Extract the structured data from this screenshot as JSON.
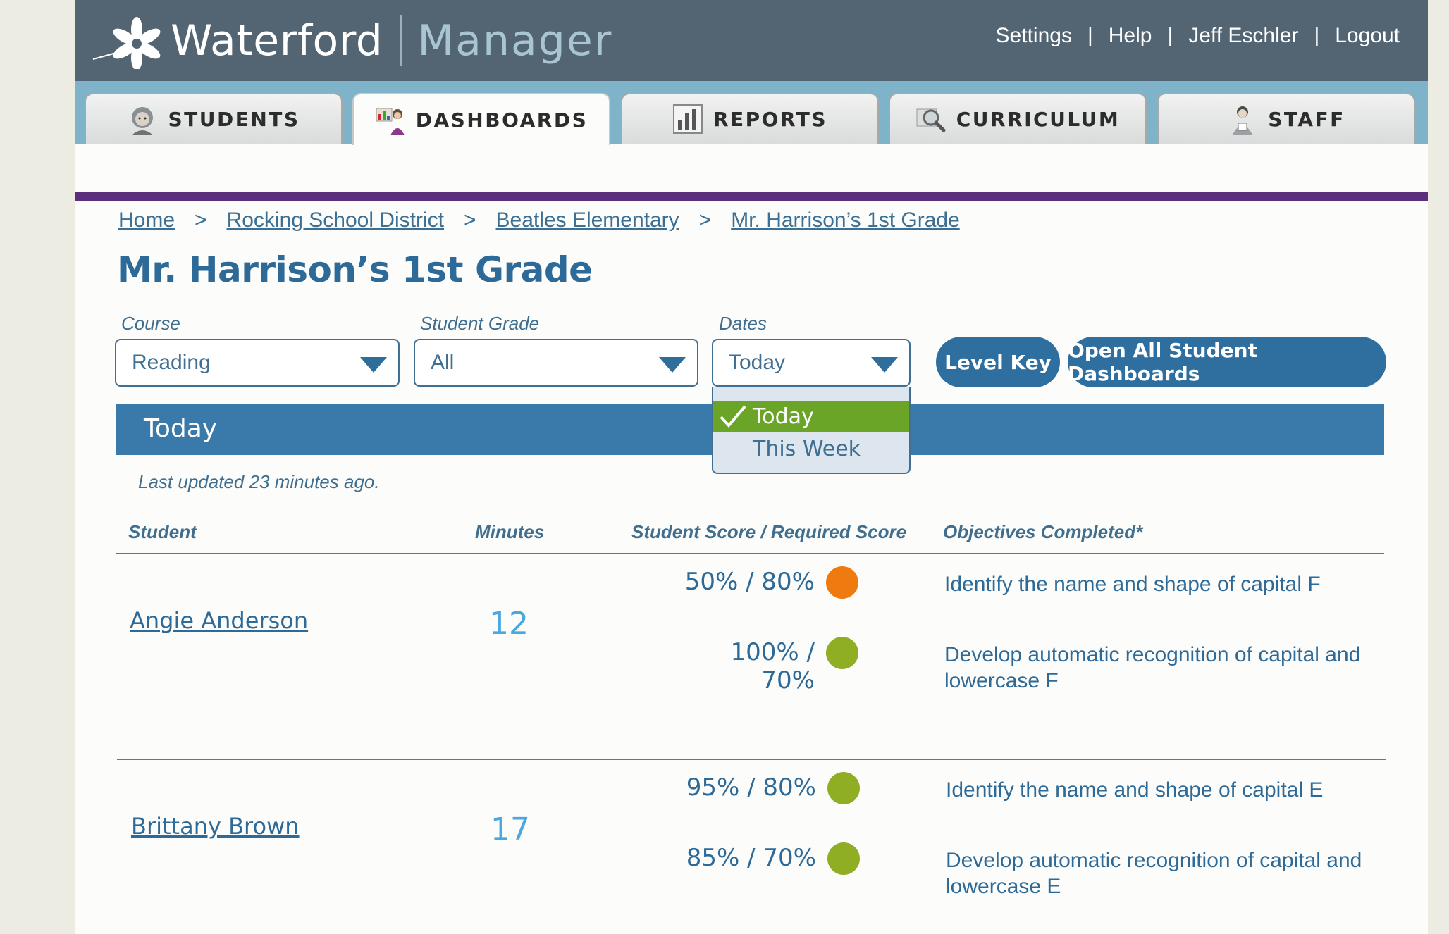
{
  "header": {
    "logo_text": "Waterford",
    "product": "Manager",
    "nav": [
      "Settings",
      "Help",
      "Jeff Eschler",
      "Logout"
    ]
  },
  "tabs": [
    {
      "label": "STUDENTS",
      "icon": "student-icon"
    },
    {
      "label": "DASHBOARDS",
      "icon": "dashboard-icon"
    },
    {
      "label": "REPORTS",
      "icon": "bar-chart-icon"
    },
    {
      "label": "CURRICULUM",
      "icon": "magnifier-icon"
    },
    {
      "label": "STAFF",
      "icon": "teacher-icon"
    }
  ],
  "active_tab": "DASHBOARDS",
  "breadcrumb": [
    "Home",
    "Rocking School District",
    "Beatles Elementary",
    "Mr. Harrison’s 1st Grade"
  ],
  "page_title": "Mr. Harrison’s 1st Grade",
  "filters": {
    "course": {
      "label": "Course",
      "value": "Reading"
    },
    "grade": {
      "label": "Student Grade",
      "value": "All"
    },
    "dates": {
      "label": "Dates",
      "value": "Today",
      "options": [
        "Today",
        "This Week"
      ],
      "selected": "Today"
    }
  },
  "buttons": {
    "level_key": "Level Key",
    "open_all": "Open All Student Dashboards"
  },
  "period_title": "Today",
  "last_updated": "Last updated 23 minutes ago.",
  "columns": [
    "Student",
    "Minutes",
    "Student Score / Required Score",
    "Objectives Completed*"
  ],
  "students": [
    {
      "name": "Angie Anderson",
      "minutes": "12",
      "objectives": [
        {
          "score": "50% / 80%",
          "status_color": "#ee7a10",
          "text": "Identify the name and shape of capital F"
        },
        {
          "score": "100%  / 70%",
          "status_color": "#8fae24",
          "text": "Develop automatic recognition of capital and lowercase F"
        }
      ]
    },
    {
      "name": "Brittany Brown",
      "minutes": "17",
      "objectives": [
        {
          "score": "95% / 80%",
          "status_color": "#8fae24",
          "text": "Identify the name and shape of capital E"
        },
        {
          "score": "85% / 70%",
          "status_color": "#8fae24",
          "text": "Develop automatic recognition of capital and lowercase E"
        }
      ]
    }
  ],
  "colors": {
    "header": "#536573",
    "tabbar": "#7fb3c9",
    "accent_purple": "#5c2e7e",
    "primary_blue": "#2e6fa0",
    "selected_green": "#6ba527"
  }
}
